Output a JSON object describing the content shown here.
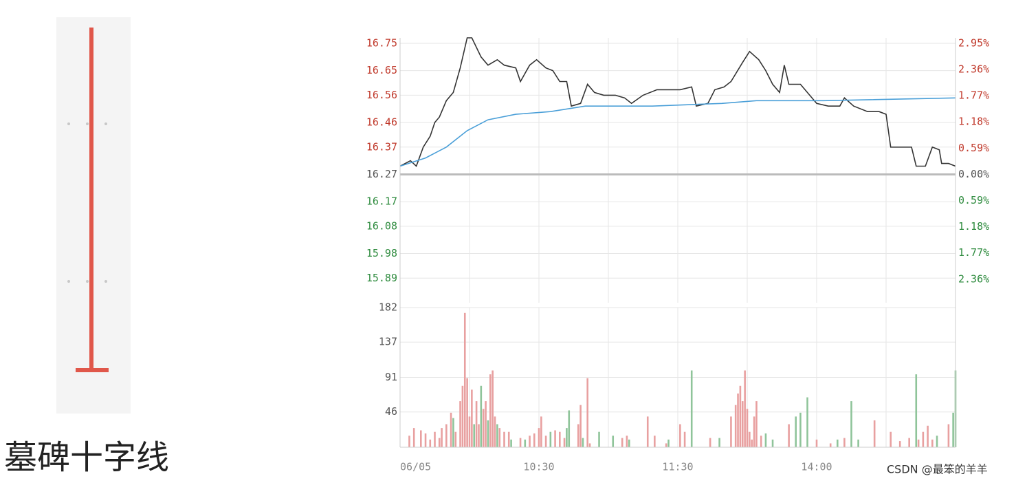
{
  "caption": "墓碑十字线",
  "watermark": "CSDN @最笨的羊羊",
  "chart_data": [
    {
      "type": "line",
      "base": 16.27,
      "up_color": "#c0392b",
      "down_color": "#2e8b3e",
      "flat_color": "#555555",
      "xlim": [
        0,
        240
      ],
      "xgrid": [
        30,
        60,
        90,
        120,
        150,
        180,
        210,
        240
      ],
      "ylim": [
        15.8,
        16.77
      ],
      "yticks": [
        16.75,
        16.65,
        16.56,
        16.46,
        16.37,
        16.27,
        16.17,
        16.08,
        15.98,
        15.89
      ],
      "y2lim": [
        -2.889,
        3.073
      ],
      "y2ticks": [
        {
          "value": 2.95,
          "label": "2.95%"
        },
        {
          "value": 2.36,
          "label": "2.36%"
        },
        {
          "value": 1.77,
          "label": "1.77%"
        },
        {
          "value": 1.18,
          "label": "1.18%"
        },
        {
          "value": 0.59,
          "label": "0.59%"
        },
        {
          "value": 0,
          "label": "0.00%"
        },
        {
          "value": -0.59,
          "label": "0.59%"
        },
        {
          "value": -1.18,
          "label": "1.18%"
        },
        {
          "value": -1.77,
          "label": "1.77%"
        },
        {
          "value": -2.36,
          "label": "2.36%"
        }
      ],
      "series": [
        {
          "color": "#333333",
          "x": [
            0,
            4.5,
            7,
            10,
            13,
            15,
            17,
            20,
            23,
            26,
            29,
            31,
            35,
            38,
            42,
            45,
            50,
            52,
            56,
            59,
            63,
            66,
            69,
            72,
            74,
            78,
            81,
            84,
            88,
            93,
            97,
            100,
            105,
            111,
            117,
            121,
            126,
            128,
            133,
            136,
            140,
            143,
            148,
            151,
            155,
            158,
            161,
            164,
            166,
            168,
            173,
            176,
            180,
            185,
            190,
            192,
            196,
            202,
            207,
            210,
            212,
            216,
            221,
            223,
            227,
            230,
            233,
            234,
            237,
            240
          ],
          "values": [
            16.3,
            16.32,
            16.3,
            16.37,
            16.41,
            16.46,
            16.48,
            16.54,
            16.57,
            16.66,
            16.77,
            16.77,
            16.7,
            16.67,
            16.69,
            16.67,
            16.66,
            16.61,
            16.67,
            16.69,
            16.66,
            16.65,
            16.61,
            16.61,
            16.52,
            16.53,
            16.6,
            16.57,
            16.56,
            16.56,
            16.55,
            16.53,
            16.56,
            16.58,
            16.58,
            16.58,
            16.59,
            16.52,
            16.53,
            16.58,
            16.59,
            16.61,
            16.68,
            16.72,
            16.69,
            16.65,
            16.6,
            16.57,
            16.67,
            16.6,
            16.6,
            16.57,
            16.53,
            16.52,
            16.52,
            16.55,
            16.52,
            16.5,
            16.5,
            16.49,
            16.37,
            16.37,
            16.37,
            16.3,
            16.3,
            16.37,
            16.36,
            16.31,
            16.31,
            16.3
          ]
        },
        {
          "color": "#4a9fd8",
          "x": [
            0,
            11,
            20,
            29,
            38,
            50,
            65,
            80,
            109,
            139,
            154,
            183,
            240
          ],
          "values": [
            16.3,
            16.33,
            16.37,
            16.43,
            16.47,
            16.49,
            16.5,
            16.52,
            16.52,
            16.53,
            16.54,
            16.54,
            16.55
          ]
        }
      ]
    },
    {
      "type": "bar",
      "xlim": [
        0,
        240
      ],
      "xgrid": [
        30,
        60,
        90,
        120,
        150,
        180,
        210,
        240
      ],
      "xticks": [
        {
          "value": 0,
          "label": "06/05"
        },
        {
          "value": 60,
          "label": "10:30"
        },
        {
          "value": 120,
          "label": "11:30"
        },
        {
          "value": 180,
          "label": "14:00"
        }
      ],
      "ylim": [
        0,
        182
      ],
      "yticks": [
        182,
        137,
        91,
        46
      ],
      "x": [
        4,
        6,
        9,
        11,
        13,
        15,
        17,
        18,
        20,
        22,
        23,
        24,
        26,
        27,
        28,
        29,
        30,
        31,
        32,
        33,
        34,
        35,
        36,
        37,
        38,
        39,
        40,
        41,
        42,
        43,
        45,
        47,
        48,
        52,
        54,
        56,
        58,
        60,
        61,
        63,
        65,
        67,
        69,
        71,
        72,
        73,
        77,
        78,
        79,
        81,
        82,
        86,
        92,
        96,
        98,
        99,
        107,
        110,
        115,
        116,
        121,
        123,
        126,
        134,
        138,
        143,
        145,
        146,
        147,
        148,
        149,
        150,
        151,
        152,
        153,
        154,
        156,
        158,
        161,
        168,
        171,
        173,
        176,
        180,
        186,
        189,
        192,
        195,
        198,
        205,
        212,
        216,
        220,
        223,
        224,
        226,
        228,
        230,
        232,
        237,
        239,
        240
      ],
      "values": [
        15,
        25,
        22,
        18,
        10,
        20,
        12,
        25,
        30,
        45,
        38,
        20,
        60,
        80,
        175,
        90,
        40,
        75,
        30,
        60,
        30,
        80,
        50,
        60,
        35,
        95,
        100,
        40,
        30,
        25,
        20,
        20,
        10,
        12,
        10,
        15,
        18,
        25,
        40,
        15,
        20,
        22,
        20,
        12,
        25,
        48,
        30,
        55,
        12,
        90,
        5,
        20,
        15,
        12,
        15,
        10,
        40,
        15,
        5,
        10,
        30,
        20,
        100,
        12,
        12,
        40,
        55,
        70,
        80,
        60,
        100,
        50,
        20,
        10,
        40,
        60,
        15,
        18,
        10,
        30,
        40,
        45,
        65,
        10,
        5,
        10,
        12,
        60,
        10,
        35,
        20,
        8,
        12,
        95,
        10,
        20,
        28,
        10,
        15,
        30,
        45,
        100
      ],
      "colors": [
        "#e8a0a0",
        "#e8a0a0",
        "#e8a0a0",
        "#e8a0a0",
        "#e8a0a0",
        "#e8a0a0",
        "#e8a0a0",
        "#e8a0a0",
        "#e8a0a0",
        "#e8a0a0",
        "#8fc49a",
        "#e8a0a0",
        "#e8a0a0",
        "#e8a0a0",
        "#e8a0a0",
        "#e8a0a0",
        "#e8a0a0",
        "#e8a0a0",
        "#8fc49a",
        "#e8a0a0",
        "#e8a0a0",
        "#8fc49a",
        "#e8a0a0",
        "#e8a0a0",
        "#8fc49a",
        "#e8a0a0",
        "#e8a0a0",
        "#e8a0a0",
        "#8fc49a",
        "#e8a0a0",
        "#e8a0a0",
        "#e8a0a0",
        "#8fc49a",
        "#e8a0a0",
        "#8fc49a",
        "#e8a0a0",
        "#e8a0a0",
        "#e8a0a0",
        "#e8a0a0",
        "#e8a0a0",
        "#8fc49a",
        "#e8a0a0",
        "#e8a0a0",
        "#e8a0a0",
        "#8fc49a",
        "#8fc49a",
        "#e8a0a0",
        "#e8a0a0",
        "#8fc49a",
        "#e8a0a0",
        "#e8a0a0",
        "#8fc49a",
        "#8fc49a",
        "#e8a0a0",
        "#e8a0a0",
        "#8fc49a",
        "#e8a0a0",
        "#e8a0a0",
        "#e8a0a0",
        "#8fc49a",
        "#e8a0a0",
        "#e8a0a0",
        "#8fc49a",
        "#e8a0a0",
        "#8fc49a",
        "#e8a0a0",
        "#e8a0a0",
        "#e8a0a0",
        "#e8a0a0",
        "#e8a0a0",
        "#e8a0a0",
        "#e8a0a0",
        "#e8a0a0",
        "#e8a0a0",
        "#e8a0a0",
        "#e8a0a0",
        "#e8a0a0",
        "#8fc49a",
        "#8fc49a",
        "#e8a0a0",
        "#8fc49a",
        "#8fc49a",
        "#8fc49a",
        "#e8a0a0",
        "#e8a0a0",
        "#8fc49a",
        "#e8a0a0",
        "#8fc49a",
        "#8fc49a",
        "#e8a0a0",
        "#e8a0a0",
        "#e8a0a0",
        "#e8a0a0",
        "#8fc49a",
        "#e8a0a0",
        "#e8a0a0",
        "#e8a0a0",
        "#e8a0a0",
        "#8fc49a",
        "#e8a0a0",
        "#8fc49a",
        "#8fc49a"
      ]
    }
  ]
}
